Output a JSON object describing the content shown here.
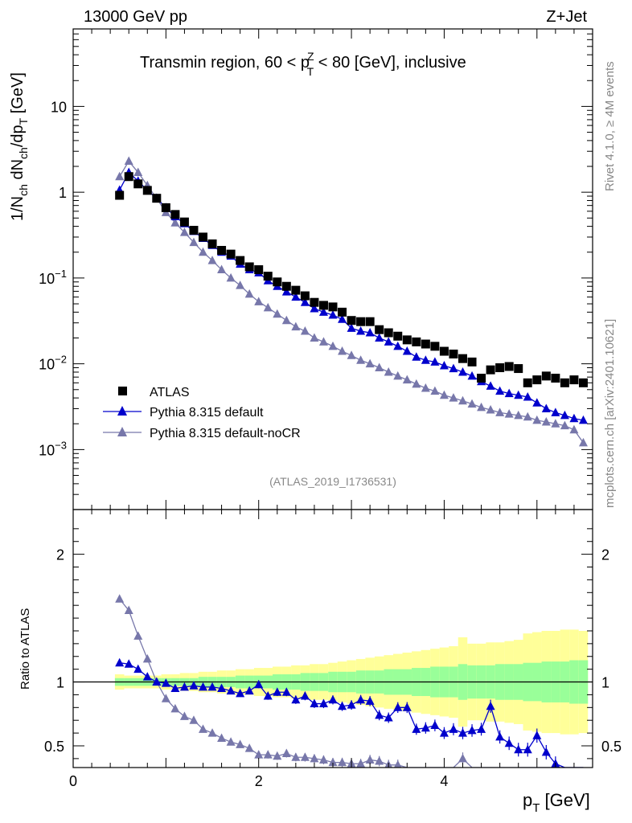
{
  "header": {
    "left": "13000 GeV pp",
    "right": "Z+Jet"
  },
  "side": {
    "rivet": "Rivet 4.1.0, ≥ 4M events",
    "mcplots": "mcplots.cern.ch [arXiv:2401.10621]"
  },
  "chart_data": {
    "type": "scatter",
    "title": "Transmin region, 60 < p",
    "title_sup": "Z",
    "title_sub": "T",
    "title_tail": " < 80 [GeV], inclusive",
    "analysis": "(ATLAS_2019_I1736531)",
    "ylabel_main": "1/N",
    "ylabel_main_sub1": "ch",
    "ylabel_main_mid": " dN",
    "ylabel_main_sub2": "ch",
    "ylabel_main_mid2": "/dp",
    "ylabel_main_sub3": "T",
    "ylabel_main_tail": " [GeV]",
    "ylabel_ratio": "Ratio to ATLAS",
    "xlabel": "p",
    "xlabel_sub": "T",
    "xlabel_tail": " [GeV]",
    "xlim": [
      0,
      5.6
    ],
    "ylim_main": [
      0.0002,
      80
    ],
    "ylim_ratio": [
      0.33,
      2.35
    ],
    "xticks": [
      "0",
      "2",
      "4"
    ],
    "yticks_main": [
      {
        "base": "10",
        "exp": "",
        "label": "10",
        "value": 10
      },
      {
        "base": "1",
        "exp": "",
        "label": "1",
        "value": 1
      },
      {
        "base": "10",
        "exp": "−1",
        "value": 0.1
      },
      {
        "base": "10",
        "exp": "−2",
        "value": 0.01
      },
      {
        "base": "10",
        "exp": "−3",
        "value": 0.001
      }
    ],
    "yticks_ratio": [
      "2",
      "1",
      "0.5"
    ],
    "yticks_ratio_values": [
      2,
      1,
      0.5
    ],
    "legend": [
      "ATLAS",
      "Pythia 8.315 default",
      "Pythia 8.315 default-noCR"
    ],
    "colors": {
      "data": "#000000",
      "default": "#0000cc",
      "nocr": "#7777aa",
      "band_outer": "#ffff99",
      "band_inner": "#99ff99"
    },
    "x": [
      0.5,
      0.6,
      0.7,
      0.8,
      0.9,
      1.0,
      1.1,
      1.2,
      1.3,
      1.4,
      1.5,
      1.6,
      1.7,
      1.8,
      1.9,
      2.0,
      2.1,
      2.2,
      2.3,
      2.4,
      2.5,
      2.6,
      2.7,
      2.8,
      2.9,
      3.0,
      3.1,
      3.2,
      3.3,
      3.4,
      3.5,
      3.6,
      3.7,
      3.8,
      3.9,
      4.0,
      4.1,
      4.2,
      4.3,
      4.4,
      4.5,
      4.6,
      4.7,
      4.8,
      4.9,
      5.0,
      5.1,
      5.2,
      5.3,
      5.4,
      5.5
    ],
    "series": [
      {
        "name": "ATLAS",
        "values": [
          0.92,
          1.52,
          1.25,
          1.05,
          0.85,
          0.66,
          0.55,
          0.45,
          0.36,
          0.3,
          0.25,
          0.21,
          0.19,
          0.16,
          0.135,
          0.125,
          0.105,
          0.09,
          0.08,
          0.072,
          0.062,
          0.052,
          0.048,
          0.046,
          0.04,
          0.032,
          0.031,
          0.031,
          0.025,
          0.023,
          0.021,
          0.019,
          0.018,
          0.017,
          0.016,
          0.014,
          0.013,
          0.0115,
          0.0105,
          0.0068,
          0.0085,
          0.009,
          0.0093,
          0.0088,
          0.006,
          0.0065,
          0.0072,
          0.0068,
          0.006,
          0.0065,
          0.006
        ]
      },
      {
        "name": "Pythia 8.315 default",
        "values": [
          1.06,
          1.7,
          1.35,
          1.05,
          0.85,
          0.66,
          0.52,
          0.43,
          0.35,
          0.29,
          0.24,
          0.2,
          0.18,
          0.145,
          0.125,
          0.115,
          0.093,
          0.08,
          0.069,
          0.06,
          0.052,
          0.044,
          0.04,
          0.037,
          0.033,
          0.026,
          0.024,
          0.023,
          0.02,
          0.018,
          0.016,
          0.014,
          0.012,
          0.011,
          0.0105,
          0.0095,
          0.0088,
          0.008,
          0.0072,
          0.0062,
          0.0055,
          0.0048,
          0.0045,
          0.0043,
          0.0041,
          0.0035,
          0.003,
          0.0027,
          0.0025,
          0.0023,
          0.0022
        ]
      },
      {
        "name": "Pythia 8.315 default-noCR",
        "values": [
          1.52,
          2.3,
          1.7,
          1.2,
          0.85,
          0.58,
          0.44,
          0.34,
          0.26,
          0.2,
          0.16,
          0.125,
          0.1,
          0.082,
          0.065,
          0.053,
          0.045,
          0.038,
          0.032,
          0.027,
          0.024,
          0.02,
          0.018,
          0.016,
          0.014,
          0.0125,
          0.011,
          0.01,
          0.009,
          0.008,
          0.0072,
          0.0065,
          0.0058,
          0.0052,
          0.0048,
          0.0043,
          0.004,
          0.0037,
          0.0034,
          0.0031,
          0.0029,
          0.0027,
          0.0026,
          0.0025,
          0.0024,
          0.0022,
          0.0021,
          0.002,
          0.0019,
          0.0017,
          0.0012
        ]
      }
    ],
    "ratio": [
      {
        "name": "Pythia 8.315 default",
        "values": [
          1.15,
          1.14,
          1.1,
          1.04,
          1.0,
          0.99,
          0.95,
          0.96,
          0.97,
          0.96,
          0.96,
          0.95,
          0.93,
          0.91,
          0.93,
          0.98,
          0.89,
          0.92,
          0.92,
          0.86,
          0.89,
          0.83,
          0.83,
          0.86,
          0.81,
          0.82,
          0.86,
          0.85,
          0.74,
          0.72,
          0.8,
          0.8,
          0.63,
          0.64,
          0.66,
          0.6,
          0.63,
          0.6,
          0.62,
          0.63,
          0.81,
          0.57,
          0.52,
          0.47,
          0.47,
          0.58,
          0.45,
          0.36,
          0.33,
          0.33,
          0.33
        ]
      },
      {
        "name": "Pythia 8.315 default-noCR",
        "values": [
          1.65,
          1.56,
          1.36,
          1.18,
          1.0,
          0.87,
          0.79,
          0.73,
          0.7,
          0.63,
          0.6,
          0.56,
          0.53,
          0.51,
          0.48,
          0.43,
          0.43,
          0.42,
          0.44,
          0.41,
          0.41,
          0.4,
          0.39,
          0.37,
          0.37,
          0.36,
          0.36,
          0.39,
          0.38,
          0.35,
          0.35,
          0.33,
          0.33,
          0.33,
          0.33,
          0.33,
          0.33,
          0.4,
          0.33,
          0.33,
          0.33,
          0.33,
          0.33,
          0.33,
          0.33,
          0.33,
          0.33,
          0.33,
          0.33,
          0.33,
          0.33
        ]
      }
    ],
    "band_outer": [
      0.06,
      0.05,
      0.05,
      0.05,
      0.05,
      0.06,
      0.06,
      0.07,
      0.07,
      0.08,
      0.08,
      0.09,
      0.09,
      0.1,
      0.1,
      0.11,
      0.11,
      0.12,
      0.12,
      0.13,
      0.13,
      0.14,
      0.14,
      0.15,
      0.16,
      0.17,
      0.18,
      0.19,
      0.2,
      0.21,
      0.22,
      0.23,
      0.24,
      0.25,
      0.26,
      0.27,
      0.28,
      0.35,
      0.3,
      0.3,
      0.31,
      0.31,
      0.32,
      0.33,
      0.38,
      0.39,
      0.4,
      0.4,
      0.41,
      0.41,
      0.4
    ],
    "band_inner": [
      0.03,
      0.03,
      0.03,
      0.03,
      0.03,
      0.03,
      0.03,
      0.03,
      0.03,
      0.04,
      0.04,
      0.04,
      0.04,
      0.05,
      0.05,
      0.05,
      0.05,
      0.06,
      0.06,
      0.06,
      0.07,
      0.07,
      0.07,
      0.08,
      0.08,
      0.08,
      0.09,
      0.09,
      0.09,
      0.1,
      0.1,
      0.1,
      0.11,
      0.11,
      0.12,
      0.12,
      0.12,
      0.14,
      0.13,
      0.13,
      0.13,
      0.14,
      0.14,
      0.14,
      0.15,
      0.15,
      0.16,
      0.16,
      0.16,
      0.17,
      0.17
    ]
  }
}
